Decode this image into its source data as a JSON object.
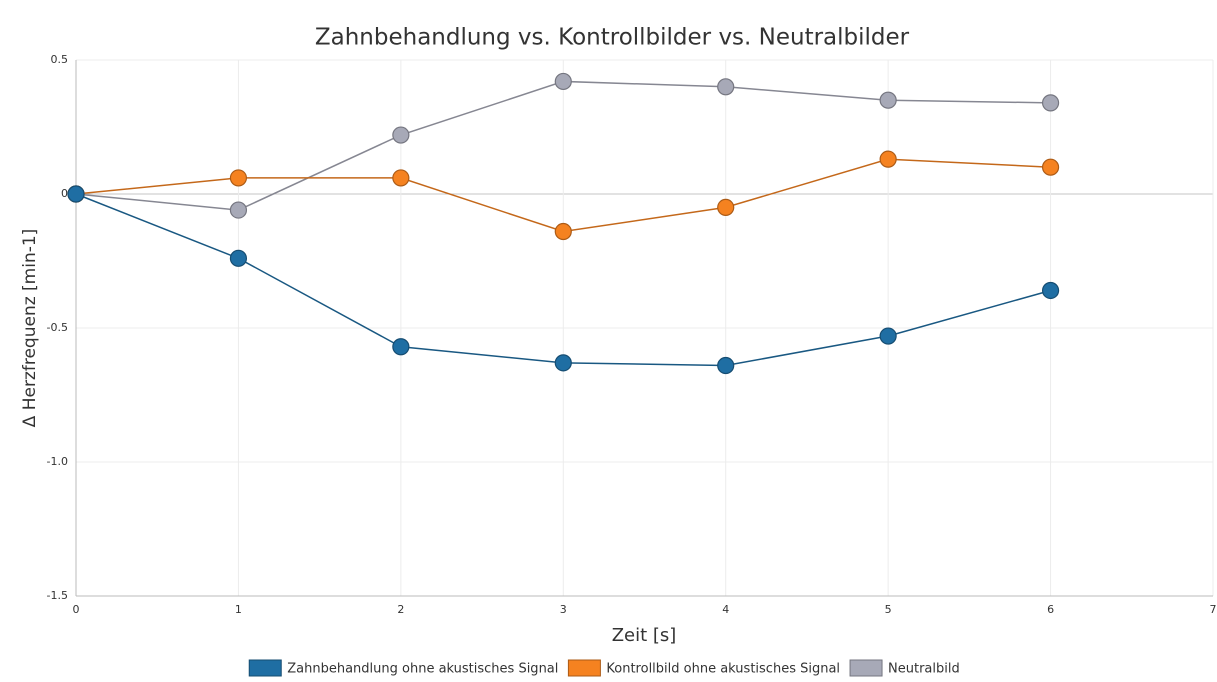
{
  "chart_data": {
    "type": "line",
    "title": "Zahnbehandlung vs. Kontrollbilder vs. Neutralbilder",
    "x_label": "Zeit [s]",
    "y_label": "Δ Herzfrequenz [min-1]",
    "x": [
      0,
      1,
      2,
      3,
      4,
      5,
      6
    ],
    "series": [
      {
        "name": "Zahnbehandlung ohne akustisches Signal",
        "color": "#1f6ea3",
        "values": [
          0,
          -0.24,
          -0.57,
          -0.63,
          -0.64,
          -0.53,
          -0.36
        ]
      },
      {
        "name": "Kontrollbild ohne akustisches Signal",
        "color": "#f58220",
        "values": [
          0,
          0.06,
          0.06,
          -0.14,
          -0.05,
          0.13,
          0.1
        ]
      },
      {
        "name": "Neutralbild",
        "color": "#a7a9b7",
        "values": [
          0,
          -0.06,
          0.22,
          0.42,
          0.4,
          0.35,
          0.34
        ]
      }
    ],
    "xlim": [
      0,
      7
    ],
    "xticks": [
      0,
      1,
      2,
      3,
      4,
      5,
      6,
      7
    ],
    "ylim": [
      -1.5,
      0.5
    ],
    "yticks": [
      0.5,
      0,
      -0.5,
      {
        "value": -1,
        "label": "-1.0"
      },
      -1.5
    ],
    "grid": true,
    "legend": "bottom"
  }
}
